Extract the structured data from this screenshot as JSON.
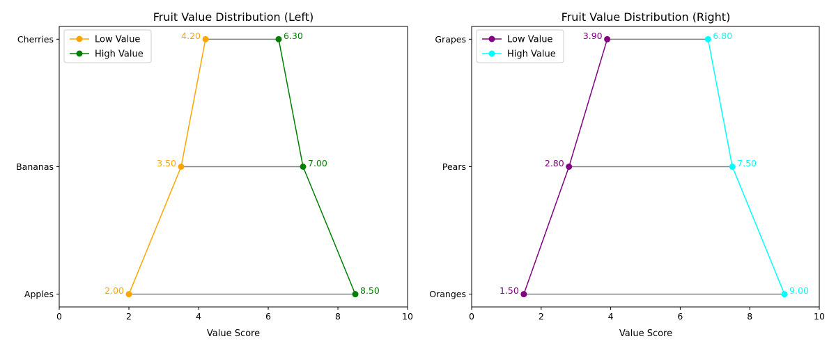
{
  "chart_data": [
    {
      "type": "dumbbell",
      "title": "Fruit Value Distribution (Left)",
      "xlabel": "Value Score",
      "ylabel": "",
      "xlim": [
        0,
        10
      ],
      "xticks": [
        "0",
        "2",
        "4",
        "6",
        "8",
        "10"
      ],
      "categories": [
        "Apples",
        "Bananas",
        "Cherries"
      ],
      "series": [
        {
          "name": "Low Value",
          "color": "#ffa500",
          "values": [
            2.0,
            3.5,
            4.2
          ],
          "labels": [
            "2.00",
            "3.50",
            "4.20"
          ]
        },
        {
          "name": "High Value",
          "color": "#008000",
          "values": [
            8.5,
            7.0,
            6.3
          ],
          "labels": [
            "8.50",
            "7.00",
            "6.30"
          ]
        }
      ],
      "connector_color": "#808080",
      "legend": "top-left"
    },
    {
      "type": "dumbbell",
      "title": "Fruit Value Distribution (Right)",
      "xlabel": "Value Score",
      "ylabel": "",
      "xlim": [
        0,
        10
      ],
      "xticks": [
        "0",
        "2",
        "4",
        "6",
        "8",
        "10"
      ],
      "categories": [
        "Oranges",
        "Pears",
        "Grapes"
      ],
      "series": [
        {
          "name": "Low Value",
          "color": "#800080",
          "values": [
            1.5,
            2.8,
            3.9
          ],
          "labels": [
            "1.50",
            "2.80",
            "3.90"
          ]
        },
        {
          "name": "High Value",
          "color": "#00ffff",
          "values": [
            9.0,
            7.5,
            6.8
          ],
          "labels": [
            "9.00",
            "7.50",
            "6.80"
          ]
        }
      ],
      "connector_color": "#808080",
      "legend": "top-left"
    }
  ]
}
